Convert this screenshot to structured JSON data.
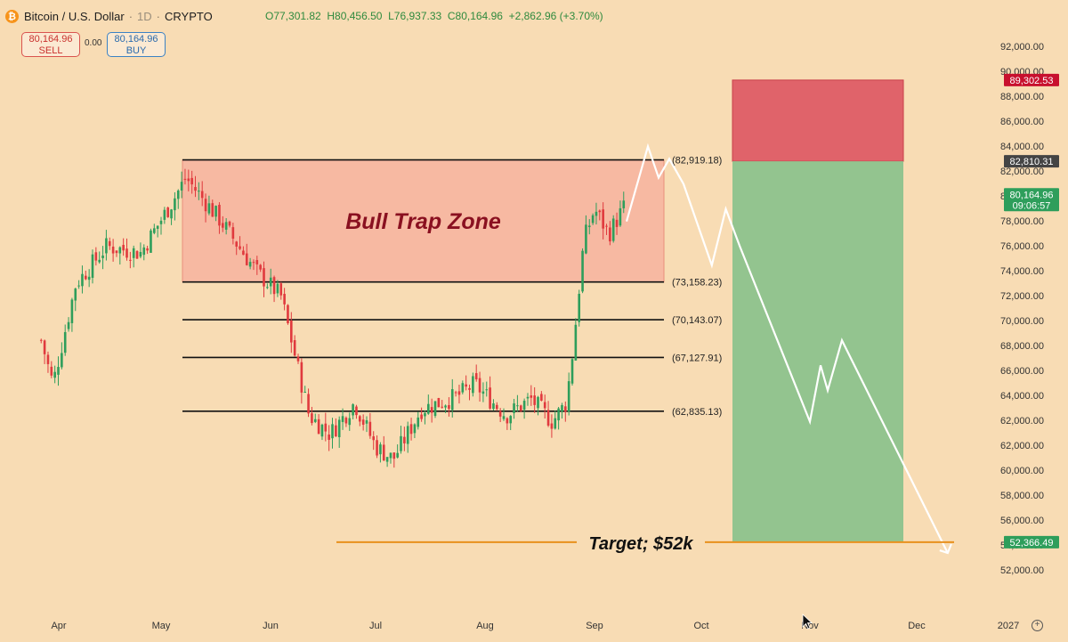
{
  "header": {
    "symbol": "Bitcoin / U.S. Dollar",
    "interval": "1D",
    "exchange": "CRYPTO",
    "open": "O77,301.82",
    "high": "H80,456.50",
    "low": "L76,937.33",
    "close": "C80,164.96",
    "change": "+2,862.96 (+3.70%)"
  },
  "trade": {
    "sell_price": "80,164.96",
    "sell_label": "SELL",
    "spread": "0.00",
    "buy_price": "80,164.96",
    "buy_label": "BUY"
  },
  "colors": {
    "background": "#f8dcb4",
    "bull_candle": "#2e9e5b",
    "bear_candle": "#e03a3e",
    "zone_fill": "#f7b9a2",
    "stop_fill": "#e0636a",
    "target_fill": "#93c48f",
    "projection_line": "#ffffff",
    "target_line": "#e8901c"
  },
  "chart_data": {
    "type": "candlestick",
    "x_labels": [
      "Apr",
      "May",
      "Jun",
      "Jul",
      "Aug",
      "Sep",
      "Oct",
      "Nov",
      "Dec",
      "2027"
    ],
    "y_ticks": [
      "92,000.00",
      "90,000.00",
      "88,000.00",
      "86,000.00",
      "84,000.00",
      "82,000.00",
      "80,000.00",
      "78,000.00",
      "76,000.00",
      "74,000.00",
      "72,000.00",
      "70,000.00",
      "68,000.00",
      "66,000.00",
      "64,000.00",
      "62,000.00",
      "62,000.00",
      "60,000.00",
      "58,000.00",
      "56,000.00",
      "54,000.00",
      "52,000.00"
    ],
    "ylim": [
      51500,
      93000
    ],
    "series_anchors": [
      [
        "Mar 20",
        68500
      ],
      [
        "Mar 28",
        65000
      ],
      [
        "Apr 6",
        73000
      ],
      [
        "Apr 15",
        76000
      ],
      [
        "Apr 25",
        75500
      ],
      [
        "May 4",
        79500
      ],
      [
        "May 8",
        81500
      ],
      [
        "May 18",
        78000
      ],
      [
        "May 28",
        74000
      ],
      [
        "Jun 4",
        72000
      ],
      [
        "Jun 12",
        62500
      ],
      [
        "Jun 18",
        61000
      ],
      [
        "Jun 25",
        63500
      ],
      [
        "Jul 1",
        60000
      ],
      [
        "Jul 6",
        59000
      ],
      [
        "Jul 14",
        63000
      ],
      [
        "Jul 24",
        64000
      ],
      [
        "Jul 29",
        65000
      ],
      [
        "Aug 7",
        62500
      ],
      [
        "Aug 14",
        63800
      ],
      [
        "Aug 20",
        62000
      ],
      [
        "Aug 24",
        63500
      ],
      [
        "Aug 26",
        68000
      ],
      [
        "Aug 29",
        76500
      ],
      [
        "Sep 1",
        79000
      ],
      [
        "Sep 5",
        77000
      ],
      [
        "Sep 10",
        79500
      ]
    ],
    "zone": {
      "label": "Bull Trap Zone",
      "top": 82919.18,
      "bottom": 73158.23
    },
    "levels": [
      {
        "value": 82919.18,
        "label": "(82,919.18)"
      },
      {
        "value": 73158.23,
        "label": "(73,158.23)"
      },
      {
        "value": 70143.07,
        "label": "(70,143.07)"
      },
      {
        "value": 67127.91,
        "label": "(67,127.91)"
      },
      {
        "value": 62835.13,
        "label": "(62,835.13)"
      }
    ],
    "projection": [
      [
        "Sep 10",
        78000
      ],
      [
        "Sep 16",
        84000
      ],
      [
        "Sep 19",
        81500
      ],
      [
        "Sep 22",
        83000
      ],
      [
        "Sep 26",
        81000
      ],
      [
        "Oct 4",
        74500
      ],
      [
        "Oct 8",
        79000
      ],
      [
        "Oct 12",
        76000
      ],
      [
        "Nov 1",
        62000
      ],
      [
        "Nov 4",
        66500
      ],
      [
        "Nov 6",
        64500
      ],
      [
        "Nov 10",
        68500
      ],
      [
        "Dec 10",
        51500
      ]
    ],
    "risk_reward": {
      "stop": 89302.53,
      "entry": 82810.31,
      "target": 52366.49
    },
    "target_label": "Target; $52k",
    "price_tags": [
      {
        "text": "89,302.53",
        "value": 89302.53,
        "color": "#c8102e"
      },
      {
        "text": "82,810.31",
        "value": 82810.31,
        "color": "#444444"
      },
      {
        "text": "80,164.96",
        "text2": "09:06:57",
        "value": 80164.96,
        "color": "#2e9e5b"
      },
      {
        "text": "52,366.49",
        "value": 52366.49,
        "color": "#2e9e5b"
      }
    ],
    "grid": false
  }
}
